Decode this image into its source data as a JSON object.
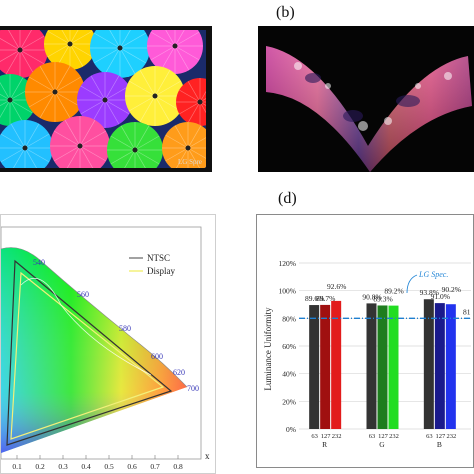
{
  "panels": {
    "b": "(b)",
    "d": "(d)"
  },
  "photo_a": {
    "watermark": "LG Spre"
  },
  "cie": {
    "wavelength_labels": [
      "540",
      "560",
      "580",
      "600",
      "620",
      "700"
    ],
    "x_ticks": [
      "0.1",
      "0.2",
      "0.3",
      "0.4",
      "0.5",
      "0.6",
      "0.7",
      "0.8"
    ],
    "x_axis_letter": "x",
    "legend": {
      "ntsc": "NTSC",
      "display": "Display"
    },
    "colors": {
      "ntsc": "#444444",
      "display": "#f2f07a",
      "label": "#3a3ab8"
    }
  },
  "chart_data": {
    "type": "bar",
    "ylabel": "Luminance Uniformity",
    "ylim": [
      0,
      120
    ],
    "y_ticks": [
      "0%",
      "20%",
      "40%",
      "60%",
      "80%",
      "100%",
      "120%"
    ],
    "groups": [
      "R",
      "G",
      "B"
    ],
    "levels": [
      "63",
      "127",
      "232"
    ],
    "series": [
      {
        "group": "R",
        "values": [
          89.6,
          89.7,
          92.6
        ],
        "labels": [
          "89.6%",
          "89.7%",
          "92.6%"
        ],
        "colors": [
          "#333333",
          "#a01010",
          "#e21b1b"
        ]
      },
      {
        "group": "G",
        "values": [
          90.8,
          89.3,
          89.2
        ],
        "labels": [
          "90.8%",
          "89.3%",
          "89.2%"
        ],
        "colors": [
          "#333333",
          "#1e7d1e",
          "#22dd22"
        ]
      },
      {
        "group": "B",
        "values": [
          93.8,
          91.0,
          90.2
        ],
        "labels": [
          "93.8%",
          "91.0%",
          "90.2%"
        ],
        "colors": [
          "#333333",
          "#1a1a8c",
          "#2233ee"
        ]
      }
    ],
    "reference": {
      "value": 80,
      "label": "LG Spec.",
      "label_tail": "81"
    },
    "grid": true
  }
}
